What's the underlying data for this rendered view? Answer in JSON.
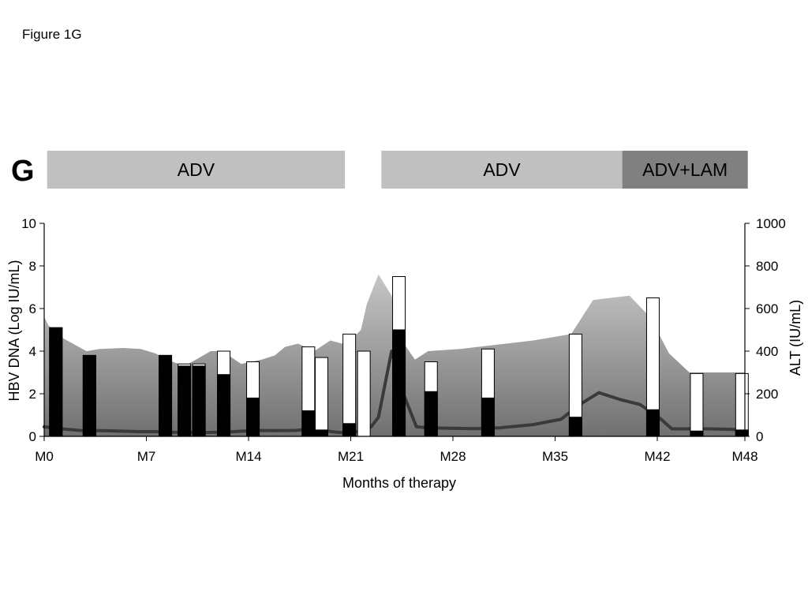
{
  "figure_label": "Figure 1G",
  "chart_data": {
    "type": "bar",
    "panel_letter": "G",
    "xlabel": "Months of therapy",
    "ylabel_left": "HBV DNA (Log IU/mL)",
    "ylabel_right": "ALT (IU/mL)",
    "xlim": [
      0,
      48
    ],
    "ylim_left": [
      0,
      10
    ],
    "ylim_right": [
      0,
      1000
    ],
    "x_ticks": [
      {
        "value": 0,
        "label": "M0"
      },
      {
        "value": 7,
        "label": "M7"
      },
      {
        "value": 14,
        "label": "M14"
      },
      {
        "value": 21,
        "label": "M21"
      },
      {
        "value": 28,
        "label": "M28"
      },
      {
        "value": 35,
        "label": "M35"
      },
      {
        "value": 42,
        "label": "M42"
      },
      {
        "value": 48,
        "label": "M48"
      }
    ],
    "y_ticks_left": [
      0,
      2,
      4,
      6,
      8,
      10
    ],
    "y_ticks_right": [
      0,
      200,
      400,
      600,
      800,
      1000
    ],
    "treatment_bars": [
      {
        "label": "ADV",
        "start": 0.2,
        "end": 20.6,
        "color": "#c0c0c0"
      },
      {
        "label": "ADV",
        "start": 23.1,
        "end": 39.6,
        "color": "#c0c0c0"
      },
      {
        "label": "ADV+LAM",
        "start": 39.6,
        "end": 48.2,
        "color": "#808080"
      }
    ],
    "background_area": {
      "x": [
        0,
        0.3,
        1.3,
        2.9,
        3.8,
        5.4,
        6.6,
        7.6,
        8.8,
        9.6,
        10.4,
        11.4,
        12.2,
        13.5,
        14.9,
        15.8,
        16.5,
        17.4,
        18.5,
        19.6,
        20.7,
        21.7,
        22.1,
        22.9,
        23.8,
        24.6,
        25.4,
        26.3,
        28.5,
        31.0,
        33.5,
        36.1,
        37.6,
        38.8,
        40.1,
        41.5,
        42.8,
        44.2,
        46.0,
        48.0
      ],
      "y": [
        5.6,
        5.2,
        4.6,
        4.0,
        4.1,
        4.15,
        4.1,
        3.9,
        3.5,
        3.3,
        3.6,
        4.0,
        4.0,
        3.4,
        3.6,
        3.8,
        4.2,
        4.35,
        4.0,
        4.5,
        4.3,
        5.0,
        6.2,
        7.6,
        6.6,
        4.4,
        3.6,
        4.0,
        4.1,
        4.3,
        4.5,
        4.8,
        6.4,
        6.5,
        6.6,
        5.6,
        3.9,
        3.0,
        3.0,
        3.0
      ]
    },
    "series": [
      {
        "name": "ALT",
        "type": "line",
        "x": [
          0,
          1.2,
          2.4,
          3.7,
          5.0,
          6.5,
          7.6,
          8.5,
          9.6,
          10.5,
          11.6,
          12.4,
          13.5,
          14.7,
          15.8,
          17.2,
          18.5,
          19.7,
          20.8,
          21.7,
          22.4,
          22.9,
          23.8,
          24.6,
          25.5,
          26.3,
          27.8,
          29.5,
          31.2,
          33.5,
          35.4,
          36.7,
          38.0,
          39.6,
          40.8,
          42.1,
          43.0,
          44.2,
          45.6,
          47.0,
          48.0
        ],
        "y": [
          45,
          35,
          28,
          27,
          25,
          22,
          22,
          20,
          18,
          17,
          19,
          20,
          24,
          28,
          27,
          28,
          35,
          22,
          15,
          25,
          45,
          90,
          400,
          200,
          45,
          40,
          38,
          36,
          40,
          55,
          80,
          150,
          205,
          170,
          150,
          90,
          35,
          35,
          35,
          33,
          30
        ]
      },
      {
        "name": "HBV DNA",
        "type": "stacked_bar",
        "bars": [
          {
            "x": 0.8,
            "total": 5.1,
            "dark": 5.1
          },
          {
            "x": 3.1,
            "total": 3.8,
            "dark": 3.8
          },
          {
            "x": 8.3,
            "total": 3.8,
            "dark": 3.8
          },
          {
            "x": 9.6,
            "total": 3.4,
            "dark": 3.3
          },
          {
            "x": 10.6,
            "total": 3.4,
            "dark": 3.3
          },
          {
            "x": 12.3,
            "total": 4.0,
            "dark": 2.9
          },
          {
            "x": 14.3,
            "total": 3.5,
            "dark": 1.8
          },
          {
            "x": 18.1,
            "total": 4.2,
            "dark": 1.2
          },
          {
            "x": 19.0,
            "total": 3.7,
            "dark": 0.3
          },
          {
            "x": 20.9,
            "total": 4.8,
            "dark": 0.6
          },
          {
            "x": 21.9,
            "total": 4.0,
            "dark": 0.0
          },
          {
            "x": 24.3,
            "total": 7.5,
            "dark": 5.0
          },
          {
            "x": 26.5,
            "total": 3.5,
            "dark": 2.1
          },
          {
            "x": 30.4,
            "total": 4.1,
            "dark": 1.8
          },
          {
            "x": 36.4,
            "total": 4.8,
            "dark": 0.9
          },
          {
            "x": 41.7,
            "total": 6.5,
            "dark": 1.25
          },
          {
            "x": 44.7,
            "total": 2.95,
            "dark": 0.25
          },
          {
            "x": 47.8,
            "total": 2.95,
            "dark": 0.3
          }
        ]
      }
    ],
    "colors": {
      "bar_dark": "#000000",
      "bar_light": "#ffffff",
      "alt_line": "#3a3a3a",
      "area_top": "#c6c6c6",
      "area_bottom": "#707070",
      "treatment_text": "#000000"
    }
  }
}
